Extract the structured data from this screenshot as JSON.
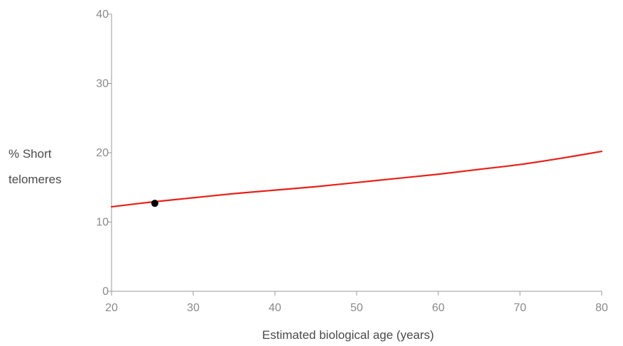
{
  "chart_data": {
    "type": "line",
    "title": "",
    "xlabel": "Estimated biological age (years)",
    "ylabel_lines": [
      "% Short",
      "telomeres"
    ],
    "xlim": [
      20,
      80
    ],
    "ylim": [
      0,
      40
    ],
    "x_ticks": [
      20,
      30,
      40,
      50,
      60,
      70,
      80
    ],
    "y_ticks": [
      0,
      10,
      20,
      30,
      40
    ],
    "grid": false,
    "legend": "none",
    "series": [
      {
        "color": "#e8201a",
        "x": [
          20,
          25,
          30,
          35,
          40,
          45,
          50,
          55,
          60,
          65,
          70,
          75,
          80
        ],
        "y": [
          12.2,
          12.9,
          13.5,
          14.1,
          14.6,
          15.1,
          15.7,
          16.3,
          16.9,
          17.6,
          18.3,
          19.2,
          20.2
        ]
      }
    ],
    "points": [
      {
        "x": 25.3,
        "y": 12.7,
        "color": "#000000"
      }
    ]
  }
}
